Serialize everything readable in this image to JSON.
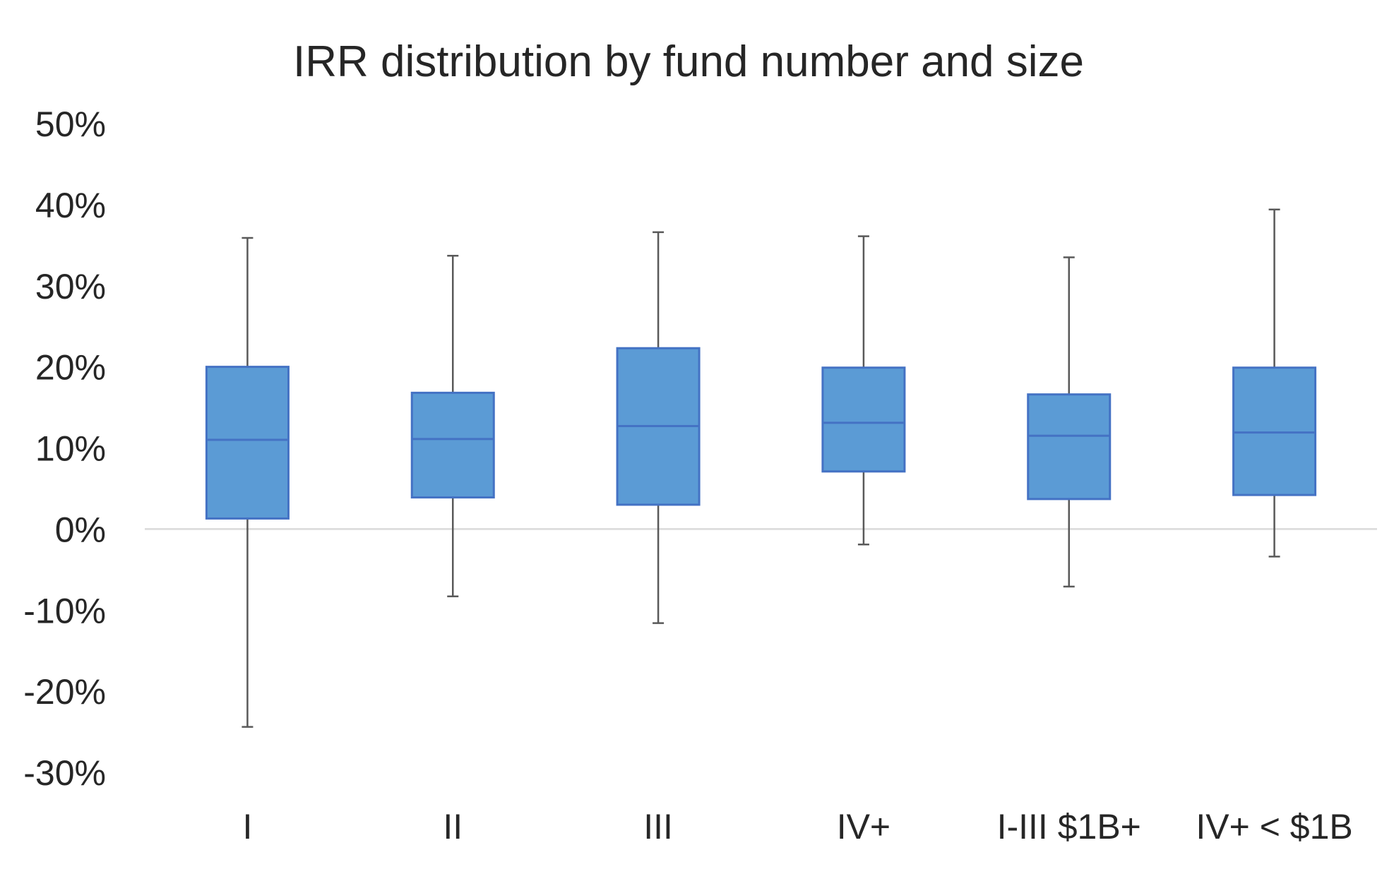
{
  "chart_data": {
    "type": "boxplot",
    "title": "IRR distribution by fund number and size",
    "xlabel": "",
    "ylabel": "",
    "ylim": [
      -30,
      50
    ],
    "y_ticks": [
      50,
      40,
      30,
      20,
      10,
      0,
      -10,
      -20,
      -30
    ],
    "y_tick_labels": [
      "50%",
      "40%",
      "30%",
      "20%",
      "10%",
      "0%",
      "-10%",
      "-20%",
      "-30%"
    ],
    "y_unit": "%",
    "grid": false,
    "zero_line": true,
    "categories": [
      "I",
      "II",
      "III",
      "IV+",
      "I-III $1B+",
      "IV+ < $1B"
    ],
    "boxes": [
      {
        "category": "I",
        "min": -24.4,
        "q1": 1.3,
        "median": 11.0,
        "q3": 20.0,
        "max": 35.9
      },
      {
        "category": "II",
        "min": -8.3,
        "q1": 3.9,
        "median": 11.1,
        "q3": 16.8,
        "max": 33.7
      },
      {
        "category": "III",
        "min": -11.6,
        "q1": 3.0,
        "median": 12.7,
        "q3": 22.3,
        "max": 36.6
      },
      {
        "category": "IV+",
        "min": -1.9,
        "q1": 7.1,
        "median": 13.1,
        "q3": 19.9,
        "max": 36.1
      },
      {
        "category": "I-III $1B+",
        "min": -7.1,
        "q1": 3.7,
        "median": 11.5,
        "q3": 16.6,
        "max": 33.5
      },
      {
        "category": "IV+ < $1B",
        "min": -3.4,
        "q1": 4.2,
        "median": 11.9,
        "q3": 19.9,
        "max": 39.4
      }
    ],
    "colors": {
      "box_fill": "#5B9BD5",
      "box_stroke": "#4472C4",
      "whisker": "#595959",
      "zero_line": "#D9D9D9"
    }
  }
}
